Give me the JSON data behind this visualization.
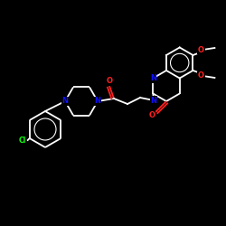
{
  "background": "#000000",
  "bond_color": "#ffffff",
  "atom_colors": {
    "N": "#1010ff",
    "O": "#ff2020",
    "Cl": "#10ff10",
    "C": "#ffffff"
  },
  "figsize": [
    2.5,
    2.5
  ],
  "dpi": 100
}
